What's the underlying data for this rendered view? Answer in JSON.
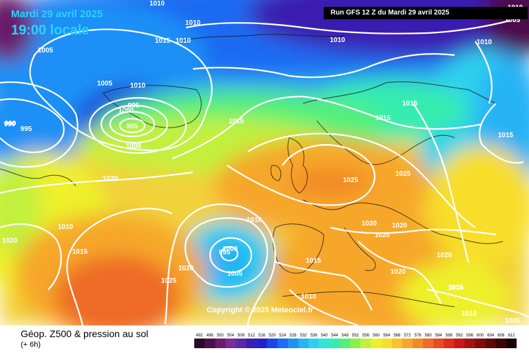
{
  "header": {
    "date": "Mardi 29 avril 2025",
    "time": "19:00 locale",
    "run": "Run GFS 12 Z du Mardi 29 avril 2025"
  },
  "footer": {
    "copyright": "Copyright © 2025 Meteociel.fr",
    "legend_title": "Géop. Z500 & pression au sol",
    "legend_sub": "(+ 6h)"
  },
  "scale": {
    "ticks": [
      "492",
      "496",
      "500",
      "504",
      "508",
      "512",
      "516",
      "520",
      "524",
      "528",
      "532",
      "536",
      "540",
      "544",
      "548",
      "552",
      "556",
      "560",
      "564",
      "568",
      "572",
      "576",
      "580",
      "584",
      "588",
      "592",
      "596",
      "600",
      "604",
      "608",
      "612"
    ],
    "colors": [
      "#2a0a2a",
      "#4b0f4b",
      "#6b1b6b",
      "#7a2a9a",
      "#5a2aa6",
      "#3a1fb0",
      "#2222cc",
      "#1b45e6",
      "#1c6bf2",
      "#1f90f6",
      "#27b3f5",
      "#2fd0ef",
      "#30e6d8",
      "#35ecb0",
      "#55ef7a",
      "#8cf04c",
      "#c2f03c",
      "#eef02c",
      "#f8de2a",
      "#f9c42a",
      "#f6a729",
      "#f28a28",
      "#ee6b26",
      "#e84c22",
      "#de2e1e",
      "#c61818",
      "#a51212",
      "#820c0c",
      "#5f0808",
      "#3d0505",
      "#1a0202"
    ]
  },
  "pressure_labels": [
    "1010",
    "1005",
    "1015",
    "1010",
    "1010",
    "1005",
    "1005",
    "1010",
    "995",
    "1000",
    "990",
    "985",
    "1000",
    "990",
    "995",
    "1015",
    "1020",
    "1010",
    "1015",
    "1020",
    "1025",
    "1015",
    "1000",
    "995",
    "1005",
    "1020",
    "1025",
    "1010",
    "1015",
    "1010",
    "1010",
    "1025",
    "1020",
    "1020",
    "1020",
    "1020",
    "1015",
    "1015",
    "1005",
    "1015",
    "1020",
    "1015",
    "1010",
    "1010",
    "1005",
    "1010"
  ],
  "colors": {
    "deep_low": "#1c2fd6",
    "high": "#f29a2a",
    "isobar": "#ffffff"
  }
}
